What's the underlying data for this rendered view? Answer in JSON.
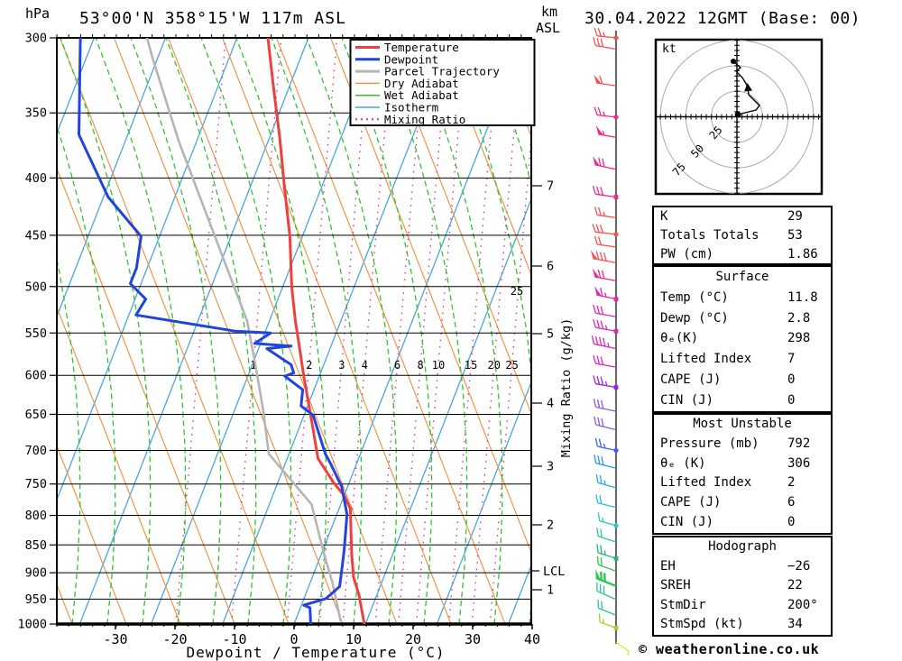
{
  "header": {
    "left_unit": "hPa",
    "title": "53°00'N 358°15'W 117m ASL",
    "right_unit_top": "km",
    "right_unit_bottom": "ASL",
    "datetime": "30.04.2022 12GMT (Base: 00)"
  },
  "legend": [
    {
      "label": "Temperature",
      "color": "#ef4040",
      "width": 3,
      "dash": ""
    },
    {
      "label": "Dewpoint",
      "color": "#2244dd",
      "width": 3,
      "dash": ""
    },
    {
      "label": "Parcel Trajectory",
      "color": "#b5b5b5",
      "width": 3,
      "dash": ""
    },
    {
      "label": "Dry Adiabat",
      "color": "#f0954a",
      "width": 1.5,
      "dash": ""
    },
    {
      "label": "Wet Adiabat",
      "color": "#30c431",
      "width": 1.5,
      "dash": ""
    },
    {
      "label": "Isotherm",
      "color": "#4aa5e0",
      "width": 1.5,
      "dash": ""
    },
    {
      "label": "Mixing Ratio",
      "color": "#e82c8c",
      "width": 2,
      "dash": "2,4"
    }
  ],
  "axes": {
    "pressure_ticks": [
      300,
      350,
      400,
      450,
      500,
      550,
      600,
      650,
      700,
      750,
      800,
      850,
      900,
      950,
      1000
    ],
    "temp_ticks": [
      -30,
      -20,
      -10,
      0,
      10,
      20,
      30,
      40
    ],
    "x_axis_label": "Dewpoint / Temperature (°C)",
    "km_ticks": [
      7,
      6,
      5,
      4,
      3,
      2,
      1
    ],
    "lcl_label": "LCL",
    "mixing_axis_label": "Mixing Ratio (g/kg)",
    "mixing_values": [
      1,
      2,
      3,
      4,
      6,
      8,
      10,
      15,
      20,
      25
    ],
    "mixing_extra_label": "25"
  },
  "chart_data": {
    "type": "line",
    "title": "Skew-T log-P sounding",
    "xlabel": "Dewpoint / Temperature (°C)",
    "ylabel": "hPa",
    "y_range_hpa": [
      300,
      1000
    ],
    "x_tick_range_c": [
      -30,
      40
    ],
    "grid": true,
    "legend_position": "top-right",
    "series": [
      {
        "name": "Temperature",
        "color": "#ef4040",
        "points_p_t": [
          [
            1000,
            11.8
          ],
          [
            942,
            9.0
          ],
          [
            908,
            6.9
          ],
          [
            866,
            5.1
          ],
          [
            827,
            3.5
          ],
          [
            789,
            1.9
          ],
          [
            769,
            0.1
          ],
          [
            748,
            -2.6
          ],
          [
            712,
            -6.8
          ],
          [
            654,
            -10.7
          ],
          [
            601,
            -14.6
          ],
          [
            563,
            -17.5
          ],
          [
            537,
            -19.6
          ],
          [
            500,
            -22.5
          ],
          [
            451,
            -26.1
          ],
          [
            408,
            -30.2
          ],
          [
            368,
            -34.3
          ],
          [
            333,
            -38.5
          ],
          [
            300,
            -42.8
          ]
        ]
      },
      {
        "name": "Dewpoint",
        "color": "#2244dd",
        "points_p_t": [
          [
            1000,
            2.8
          ],
          [
            967,
            1.6
          ],
          [
            962,
            0.4
          ],
          [
            949,
            3.7
          ],
          [
            926,
            5.2
          ],
          [
            888,
            4.3
          ],
          [
            860,
            3.6
          ],
          [
            833,
            2.8
          ],
          [
            798,
            1.7
          ],
          [
            754,
            -1.0
          ],
          [
            720,
            -4.3
          ],
          [
            705,
            -5.9
          ],
          [
            651,
            -10.5
          ],
          [
            639,
            -13.1
          ],
          [
            618,
            -13.9
          ],
          [
            601,
            -17.8
          ],
          [
            597,
            -16.5
          ],
          [
            587,
            -17.5
          ],
          [
            568,
            -22.6
          ],
          [
            565,
            -18.7
          ],
          [
            562,
            -25.0
          ],
          [
            550,
            -23.0
          ],
          [
            548,
            -29.0
          ],
          [
            530,
            -46.8
          ],
          [
            513,
            -46.2
          ],
          [
            497,
            -49.8
          ],
          [
            481,
            -49.8
          ],
          [
            451,
            -51.1
          ],
          [
            416,
            -59.2
          ],
          [
            366,
            -68.2
          ],
          [
            300,
            -74.3
          ]
        ]
      },
      {
        "name": "Parcel Trajectory",
        "color": "#b5b5b5",
        "points_p_t": [
          [
            993,
            7.6
          ],
          [
            916,
            3.6
          ],
          [
            870,
            0.7
          ],
          [
            782,
            -4.9
          ],
          [
            705,
            -15.4
          ],
          [
            643,
            -19.3
          ],
          [
            587,
            -23.5
          ],
          [
            537,
            -27.7
          ],
          [
            439,
            -40.4
          ],
          [
            371,
            -51.0
          ],
          [
            313,
            -60.8
          ],
          [
            300,
            -63.1
          ]
        ]
      }
    ]
  },
  "wind_barbs": {
    "staff_note": "colored wind barbs by level",
    "levels": [
      {
        "p": 300,
        "c": "#f85050",
        "fl": 0,
        "fu": 2,
        "ha": 1,
        "tilt": 6,
        "m": "dot"
      },
      {
        "p": 307,
        "c": "#f85050",
        "fl": 0,
        "fu": 3,
        "ha": 0,
        "tilt": 10,
        "m": null
      },
      {
        "p": 331,
        "c": "#f85050",
        "fl": 1,
        "fu": 1,
        "ha": 0,
        "tilt": 8,
        "m": null
      },
      {
        "p": 353,
        "c": "#f0288c",
        "fl": 0,
        "fu": 2,
        "ha": 1,
        "tilt": 6,
        "m": "dot"
      },
      {
        "p": 368,
        "c": "#f0288c",
        "fl": 1,
        "fu": 0,
        "ha": 1,
        "tilt": 10,
        "m": null
      },
      {
        "p": 393,
        "c": "#f0288c",
        "fl": 1,
        "fu": 2,
        "ha": 0,
        "tilt": 12,
        "m": null
      },
      {
        "p": 416,
        "c": "#f0288c",
        "fl": 0,
        "fu": 3,
        "ha": 0,
        "tilt": 8,
        "m": "square"
      },
      {
        "p": 434,
        "c": "#f85050",
        "fl": 0,
        "fu": 2,
        "ha": 1,
        "tilt": 8,
        "m": null
      },
      {
        "p": 449,
        "c": "#f85050",
        "fl": 0,
        "fu": 3,
        "ha": 0,
        "tilt": 6,
        "m": "dot"
      },
      {
        "p": 461,
        "c": "#f85050",
        "fl": 0,
        "fu": 2,
        "ha": 0,
        "tilt": 8,
        "m": null
      },
      {
        "p": 476,
        "c": "#f85050",
        "fl": 1,
        "fu": 3,
        "ha": 0,
        "tilt": 10,
        "m": null
      },
      {
        "p": 494,
        "c": "#f0288c",
        "fl": 1,
        "fu": 2,
        "ha": 0,
        "tilt": 10,
        "m": null
      },
      {
        "p": 513,
        "c": "#dc28b4",
        "fl": 1,
        "fu": 1,
        "ha": 1,
        "tilt": 12,
        "m": "square"
      },
      {
        "p": 532,
        "c": "#dc28b4",
        "fl": 0,
        "fu": 3,
        "ha": 0,
        "tilt": 10,
        "m": null
      },
      {
        "p": 548,
        "c": "#dc28b4",
        "fl": 0,
        "fu": 3,
        "ha": 1,
        "tilt": 10,
        "m": "square"
      },
      {
        "p": 568,
        "c": "#dc28b4",
        "fl": 0,
        "fu": 4,
        "ha": 1,
        "tilt": 12,
        "m": null
      },
      {
        "p": 590,
        "c": "#dc28b4",
        "fl": 0,
        "fu": 3,
        "ha": 0,
        "tilt": 10,
        "m": null
      },
      {
        "p": 615,
        "c": "#9628dc",
        "fl": 0,
        "fu": 3,
        "ha": 1,
        "tilt": 10,
        "m": "square"
      },
      {
        "p": 646,
        "c": "#8c5ae6",
        "fl": 0,
        "fu": 3,
        "ha": 0,
        "tilt": 12,
        "m": null
      },
      {
        "p": 671,
        "c": "#8c5ae6",
        "fl": 0,
        "fu": 3,
        "ha": 0,
        "tilt": 14,
        "m": null
      },
      {
        "p": 700,
        "c": "#3c64f0",
        "fl": 0,
        "fu": 2,
        "ha": 1,
        "tilt": 12,
        "m": "dot"
      },
      {
        "p": 726,
        "c": "#2896f0",
        "fl": 0,
        "fu": 3,
        "ha": 0,
        "tilt": 14,
        "m": null
      },
      {
        "p": 756,
        "c": "#28aae6",
        "fl": 0,
        "fu": 2,
        "ha": 1,
        "tilt": 16,
        "m": null
      },
      {
        "p": 787,
        "c": "#28c0dc",
        "fl": 0,
        "fu": 2,
        "ha": 0,
        "tilt": 14,
        "m": null
      },
      {
        "p": 817,
        "c": "#28c8c8",
        "fl": 0,
        "fu": 1,
        "ha": 1,
        "tilt": 16,
        "m": "dot"
      },
      {
        "p": 845,
        "c": "#28c8a0",
        "fl": 0,
        "fu": 2,
        "ha": 0,
        "tilt": 18,
        "m": null
      },
      {
        "p": 874,
        "c": "#28b478",
        "fl": 0,
        "fu": 2,
        "ha": 1,
        "tilt": 18,
        "m": "square"
      },
      {
        "p": 897,
        "c": "#28c850",
        "fl": 0,
        "fu": 2,
        "ha": 0,
        "tilt": 20,
        "m": null
      },
      {
        "p": 925,
        "c": "#28c850",
        "fl": 1,
        "fu": 2,
        "ha": 0,
        "tilt": 22,
        "m": null,
        "thick": true
      },
      {
        "p": 951,
        "c": "#28c896",
        "fl": 0,
        "fu": 3,
        "ha": 0,
        "tilt": 24,
        "m": null
      },
      {
        "p": 982,
        "c": "#28c896",
        "fl": 0,
        "fu": 2,
        "ha": 0,
        "tilt": 22,
        "m": null
      },
      {
        "p": 1008,
        "c": "#a0d228",
        "fl": 0,
        "fu": 1,
        "ha": 1,
        "tilt": 20,
        "m": "square"
      },
      {
        "p": 1038,
        "c": "#e6e632",
        "fl": 0,
        "fu": 0,
        "ha": 1,
        "tilt": -35,
        "m": null,
        "dir": "right"
      }
    ]
  },
  "hodograph": {
    "unit": "kt",
    "rings_kt": [
      25,
      50,
      75
    ],
    "trace_kt_uv": [
      [
        0.9,
        2.2
      ],
      [
        18.6,
        6.6
      ],
      [
        22.1,
        11.0
      ],
      [
        11.5,
        21.6
      ],
      [
        10.6,
        29.6
      ],
      [
        5.3,
        38.4
      ],
      [
        -0.9,
        44.6
      ],
      [
        3.5,
        48.1
      ],
      [
        -3.5,
        54.3
      ]
    ],
    "arrow_index": 4
  },
  "tables": [
    {
      "title": null,
      "rows": [
        [
          "K",
          "29"
        ],
        [
          "Totals Totals",
          "53"
        ],
        [
          "PW (cm)",
          "1.86"
        ]
      ]
    },
    {
      "title": "Surface",
      "rows": [
        [
          "Temp (°C)",
          "11.8"
        ],
        [
          "Dewp (°C)",
          "2.8"
        ],
        [
          "θₑ(K)",
          "298"
        ],
        [
          "Lifted Index",
          "7"
        ],
        [
          "CAPE (J)",
          "0"
        ],
        [
          "CIN (J)",
          "0"
        ]
      ]
    },
    {
      "title": "Most Unstable",
      "rows": [
        [
          "Pressure (mb)",
          "792"
        ],
        [
          "θₑ (K)",
          "306"
        ],
        [
          "Lifted Index",
          "2"
        ],
        [
          "CAPE (J)",
          "6"
        ],
        [
          "CIN (J)",
          "0"
        ]
      ]
    },
    {
      "title": "Hodograph",
      "rows": [
        [
          "EH",
          "−26"
        ],
        [
          "SREH",
          "22"
        ],
        [
          "StmDir",
          "200°"
        ],
        [
          "StmSpd (kt)",
          "34"
        ]
      ]
    }
  ],
  "footer": "© weatheronline.co.uk"
}
